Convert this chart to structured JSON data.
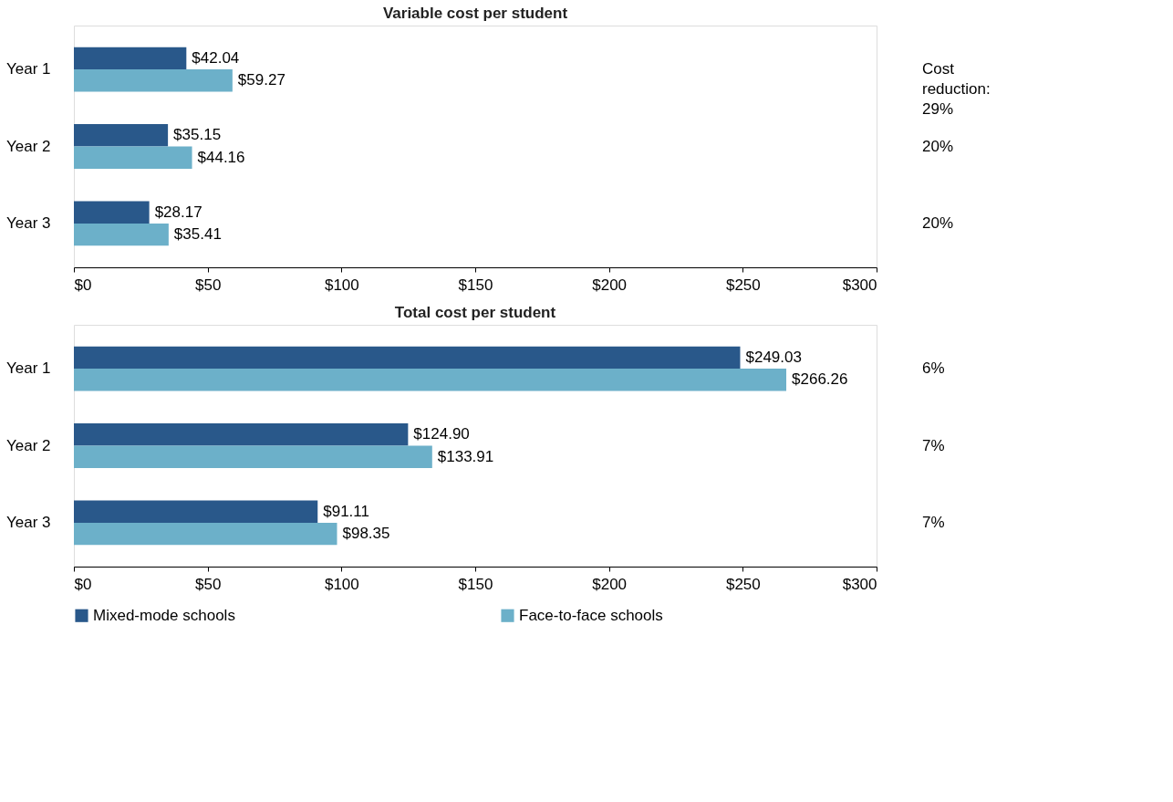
{
  "chart_data": [
    {
      "type": "bar",
      "orientation": "horizontal",
      "title": "Variable cost per student",
      "categories": [
        "Year 1",
        "Year 2",
        "Year 3"
      ],
      "xlim": [
        0,
        300
      ],
      "xticks": [
        {
          "value": 0,
          "label": "$0"
        },
        {
          "value": 50,
          "label": "$50"
        },
        {
          "value": 100,
          "label": "$100"
        },
        {
          "value": 150,
          "label": "$150"
        },
        {
          "value": 200,
          "label": "$200"
        },
        {
          "value": 250,
          "label": "$250"
        },
        {
          "value": 300,
          "label": "$300"
        }
      ],
      "grid": false,
      "legend": false,
      "series": [
        {
          "color": "#29588a",
          "values": [
            42.04,
            35.15,
            28.17
          ],
          "value_labels": [
            "$42.04",
            "$35.15",
            "$28.17"
          ]
        },
        {
          "color": "#6cb0c9",
          "values": [
            59.27,
            44.16,
            35.41
          ],
          "value_labels": [
            "$59.27",
            "$44.16",
            "$35.41"
          ]
        }
      ],
      "annotations": [
        "Cost reduction: 29%",
        "20%",
        "20%"
      ]
    },
    {
      "type": "bar",
      "orientation": "horizontal",
      "title": "Total cost per student",
      "categories": [
        "Year 1",
        "Year 2",
        "Year 3"
      ],
      "xlim": [
        0,
        300
      ],
      "xticks": [
        {
          "value": 0,
          "label": "$0"
        },
        {
          "value": 50,
          "label": "$50"
        },
        {
          "value": 100,
          "label": "$100"
        },
        {
          "value": 150,
          "label": "$150"
        },
        {
          "value": 200,
          "label": "$200"
        },
        {
          "value": 250,
          "label": "$250"
        },
        {
          "value": 300,
          "label": "$300"
        }
      ],
      "grid": false,
      "legend": "bottom",
      "series": [
        {
          "name": "Mixed-mode schools",
          "color": "#29588a",
          "values": [
            249.03,
            124.9,
            91.11
          ],
          "value_labels": [
            "$249.03",
            "$124.90",
            "$91.11"
          ]
        },
        {
          "name": "Face-to-face schools",
          "color": "#6cb0c9",
          "values": [
            266.26,
            133.91,
            98.35
          ],
          "value_labels": [
            "$266.26",
            "$133.91",
            "$98.35"
          ]
        }
      ],
      "annotations": [
        "6%",
        "7%",
        "7%"
      ]
    }
  ]
}
